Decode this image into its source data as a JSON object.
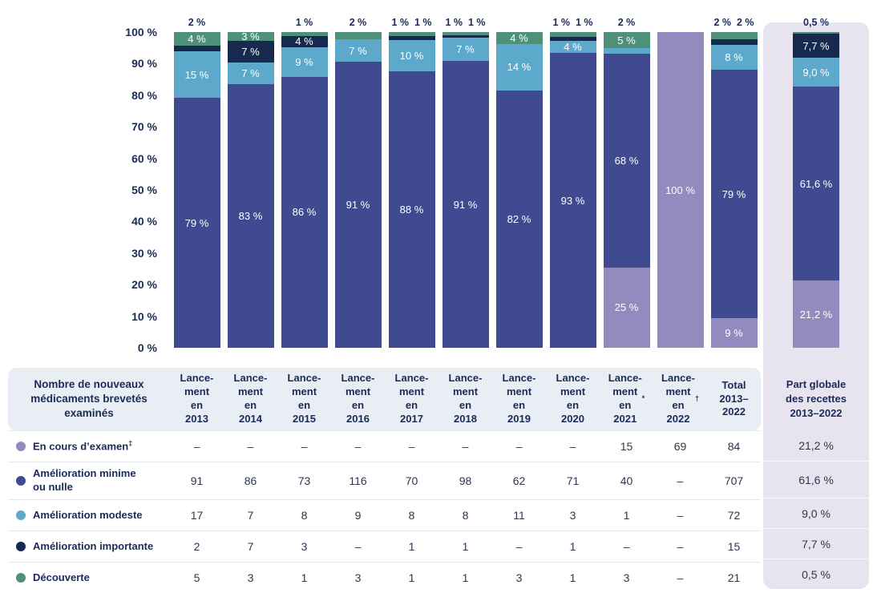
{
  "colors": {
    "encours": "#938BBE",
    "minime": "#3F4A90",
    "modeste": "#5CA9CB",
    "importante": "#16294E",
    "decouverte": "#4F9178",
    "header_bg": "#E9EDF4",
    "panel_bg": "#E7E4F0",
    "text_navy": "#1B2B57"
  },
  "chart_data": {
    "type": "stacked-bar-100",
    "unit": "%",
    "ylim": [
      0,
      100
    ],
    "y_ticks": [
      "100 %",
      "90 %",
      "80 %",
      "70 %",
      "60 %",
      "50 %",
      "40 %",
      "30 %",
      "20 %",
      "10 %",
      "0 %"
    ],
    "series_names": {
      "encours": "En cours d’examen",
      "minime": "Amélioration minime ou nulle",
      "modeste": "Amélioration modeste",
      "importante": "Amélioration importante",
      "decouverte": "Découverte"
    },
    "bars": [
      {
        "id": "2013",
        "above": "2 %",
        "segments": [
          {
            "s": "minime",
            "h": 79.1,
            "t": "79 %"
          },
          {
            "s": "modeste",
            "h": 14.8,
            "t": "15 %"
          },
          {
            "s": "importante",
            "h": 1.7,
            "t": ""
          },
          {
            "s": "decouverte",
            "h": 4.3,
            "t": "4 %"
          }
        ]
      },
      {
        "id": "2014",
        "above": "",
        "segments": [
          {
            "s": "minime",
            "h": 83.5,
            "t": "83 %"
          },
          {
            "s": "modeste",
            "h": 6.8,
            "t": "7 %"
          },
          {
            "s": "importante",
            "h": 6.8,
            "t": "7 %"
          },
          {
            "s": "decouverte",
            "h": 2.9,
            "t": "3 %"
          }
        ]
      },
      {
        "id": "2015",
        "above": "1 %",
        "segments": [
          {
            "s": "minime",
            "h": 85.9,
            "t": "86 %"
          },
          {
            "s": "modeste",
            "h": 9.4,
            "t": "9 %"
          },
          {
            "s": "importante",
            "h": 3.5,
            "t": "4 %"
          },
          {
            "s": "decouverte",
            "h": 1.2,
            "t": ""
          }
        ]
      },
      {
        "id": "2016",
        "above": "2 %",
        "segments": [
          {
            "s": "minime",
            "h": 90.6,
            "t": "91 %"
          },
          {
            "s": "modeste",
            "h": 7.0,
            "t": "7 %"
          },
          {
            "s": "decouverte",
            "h": 2.4,
            "t": ""
          }
        ]
      },
      {
        "id": "2017",
        "above": "1 %  1 %",
        "segments": [
          {
            "s": "minime",
            "h": 87.5,
            "t": "88 %"
          },
          {
            "s": "modeste",
            "h": 10.0,
            "t": "10 %"
          },
          {
            "s": "importante",
            "h": 1.25,
            "t": ""
          },
          {
            "s": "decouverte",
            "h": 1.25,
            "t": ""
          }
        ]
      },
      {
        "id": "2018",
        "above": "1 %  1 %",
        "segments": [
          {
            "s": "minime",
            "h": 90.8,
            "t": "91 %"
          },
          {
            "s": "modeste",
            "h": 7.4,
            "t": "7 %"
          },
          {
            "s": "importante",
            "h": 0.9,
            "t": ""
          },
          {
            "s": "decouverte",
            "h": 0.9,
            "t": ""
          }
        ]
      },
      {
        "id": "2019",
        "above": "",
        "segments": [
          {
            "s": "minime",
            "h": 81.6,
            "t": "82 %"
          },
          {
            "s": "modeste",
            "h": 14.5,
            "t": "14 %"
          },
          {
            "s": "decouverte",
            "h": 3.9,
            "t": "4 %"
          }
        ]
      },
      {
        "id": "2020",
        "above": "1 %  1 %",
        "segments": [
          {
            "s": "minime",
            "h": 93.4,
            "t": "93 %"
          },
          {
            "s": "modeste",
            "h": 3.9,
            "t": "4 %"
          },
          {
            "s": "importante",
            "h": 1.3,
            "t": ""
          },
          {
            "s": "decouverte",
            "h": 1.3,
            "t": ""
          }
        ]
      },
      {
        "id": "2021",
        "above": "2 %",
        "segments": [
          {
            "s": "encours",
            "h": 25.4,
            "t": "25 %"
          },
          {
            "s": "minime",
            "h": 67.8,
            "t": "68 %"
          },
          {
            "s": "modeste",
            "h": 1.7,
            "t": ""
          },
          {
            "s": "decouverte",
            "h": 5.1,
            "t": "5 %"
          }
        ]
      },
      {
        "id": "2022",
        "above": "",
        "segments": [
          {
            "s": "encours",
            "h": 100,
            "t": "100 %"
          }
        ]
      },
      {
        "id": "total",
        "above": "2 %  2 %",
        "segments": [
          {
            "s": "encours",
            "h": 9.3,
            "t": "9 %"
          },
          {
            "s": "minime",
            "h": 78.7,
            "t": "79 %"
          },
          {
            "s": "modeste",
            "h": 8.0,
            "t": "8 %"
          },
          {
            "s": "importante",
            "h": 1.7,
            "t": ""
          },
          {
            "s": "decouverte",
            "h": 2.3,
            "t": ""
          }
        ]
      },
      {
        "id": "part",
        "above": "0,5 %",
        "segments": [
          {
            "s": "encours",
            "h": 21.2,
            "t": "21,2 %"
          },
          {
            "s": "minime",
            "h": 61.6,
            "t": "61,6 %"
          },
          {
            "s": "modeste",
            "h": 9.0,
            "t": "9,0 %"
          },
          {
            "s": "importante",
            "h": 7.7,
            "t": "7,7 %"
          },
          {
            "s": "decouverte",
            "h": 0.5,
            "t": ""
          }
        ]
      }
    ]
  },
  "table": {
    "title": "Nombre de nouveaux médicaments brevetés examinés",
    "columns": [
      {
        "lines": [
          "Lance-",
          "ment",
          "en"
        ],
        "year": "2013",
        "sup": ""
      },
      {
        "lines": [
          "Lance-",
          "ment",
          "en"
        ],
        "year": "2014",
        "sup": ""
      },
      {
        "lines": [
          "Lance-",
          "ment",
          "en"
        ],
        "year": "2015",
        "sup": ""
      },
      {
        "lines": [
          "Lance-",
          "ment",
          "en"
        ],
        "year": "2016",
        "sup": ""
      },
      {
        "lines": [
          "Lance-",
          "ment",
          "en"
        ],
        "year": "2017",
        "sup": ""
      },
      {
        "lines": [
          "Lance-",
          "ment",
          "en"
        ],
        "year": "2018",
        "sup": ""
      },
      {
        "lines": [
          "Lance-",
          "ment",
          "en"
        ],
        "year": "2019",
        "sup": ""
      },
      {
        "lines": [
          "Lance-",
          "ment",
          "en"
        ],
        "year": "2020",
        "sup": ""
      },
      {
        "lines": [
          "Lance-",
          "ment",
          "en"
        ],
        "year": "2021",
        "sup": "*"
      },
      {
        "lines": [
          "Lance-",
          "ment",
          "en"
        ],
        "year": "2022",
        "sup": "†"
      },
      {
        "lines": [
          "Total",
          "2013–",
          "2022"
        ],
        "year": "",
        "sup": ""
      }
    ],
    "part_header": {
      "lines": [
        "Part globale",
        "des recettes",
        "2013–2022"
      ]
    },
    "rows": [
      {
        "label": "En cours d’examen",
        "sup": "‡",
        "series": "encours",
        "values": [
          "–",
          "–",
          "–",
          "–",
          "–",
          "–",
          "–",
          "–",
          "15",
          "69",
          "84"
        ],
        "part": "21,2 %"
      },
      {
        "label": "Amélioration minime\nou nulle",
        "sup": "",
        "series": "minime",
        "values": [
          "91",
          "86",
          "73",
          "116",
          "70",
          "98",
          "62",
          "71",
          "40",
          "–",
          "707"
        ],
        "part": "61,6 %"
      },
      {
        "label": "Amélioration modeste",
        "sup": "",
        "series": "modeste",
        "values": [
          "17",
          "7",
          "8",
          "9",
          "8",
          "8",
          "11",
          "3",
          "1",
          "–",
          "72"
        ],
        "part": "9,0 %"
      },
      {
        "label": "Amélioration importante",
        "sup": "",
        "series": "importante",
        "values": [
          "2",
          "7",
          "3",
          "–",
          "1",
          "1",
          "–",
          "1",
          "–",
          "–",
          "15"
        ],
        "part": "7,7 %"
      },
      {
        "label": "Découverte",
        "sup": "",
        "series": "decouverte",
        "values": [
          "5",
          "3",
          "1",
          "3",
          "1",
          "1",
          "3",
          "1",
          "3",
          "–",
          "21"
        ],
        "part": "0,5 %"
      }
    ]
  }
}
